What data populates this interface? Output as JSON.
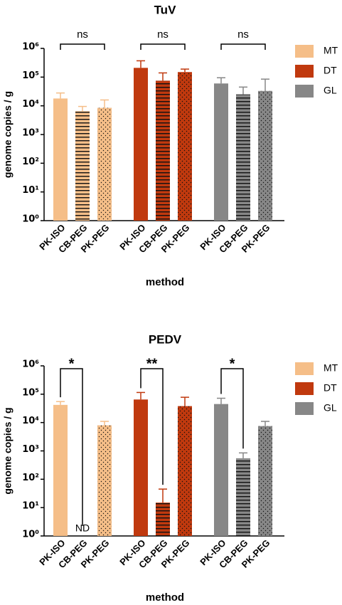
{
  "chart_data": [
    {
      "type": "bar",
      "title": "TuV",
      "xlabel": "method",
      "ylabel": "genome copies / g",
      "categories": [
        "PK-ISO",
        "CB-PEG",
        "PK-PEG"
      ],
      "series": [
        {
          "name": "MT",
          "color": "#f5be88",
          "values": [
            18000,
            6500,
            8500
          ],
          "errors": [
            10000,
            3000,
            7500
          ]
        },
        {
          "name": "DT",
          "color": "#c0390e",
          "values": [
            210000,
            75000,
            150000
          ],
          "errors": [
            160000,
            65000,
            40000
          ]
        },
        {
          "name": "GL",
          "color": "#878787",
          "values": [
            60000,
            25000,
            33000
          ],
          "errors": [
            35000,
            20000,
            52000
          ]
        }
      ],
      "patterns": [
        "solid",
        "hlines",
        "dots"
      ],
      "log_scale": true,
      "ylim": [
        1,
        1000000
      ],
      "yticks": [
        {
          "value": 1,
          "label": "10⁰"
        },
        {
          "value": 10,
          "label": "10¹"
        },
        {
          "value": 100,
          "label": "10²"
        },
        {
          "value": 1000,
          "label": "10³"
        },
        {
          "value": 10000,
          "label": "10⁴"
        },
        {
          "value": 100000,
          "label": "10⁵"
        },
        {
          "value": 1000000,
          "label": "10⁶"
        }
      ],
      "legend": "right",
      "annotations": [
        {
          "text": "ns",
          "group": 0,
          "from": 0,
          "to": 2
        },
        {
          "text": "ns",
          "group": 1,
          "from": 0,
          "to": 2
        },
        {
          "text": "ns",
          "group": 2,
          "from": 0,
          "to": 2
        }
      ]
    },
    {
      "type": "bar",
      "title": "PEDV",
      "xlabel": "method",
      "ylabel": "genome copies / g",
      "categories": [
        "PK-ISO",
        "CB-PEG",
        "PK-PEG"
      ],
      "series": [
        {
          "name": "MT",
          "color": "#f5be88",
          "values": [
            42000,
            null,
            8000
          ],
          "errors": [
            13000,
            null,
            3000
          ]
        },
        {
          "name": "DT",
          "color": "#c0390e",
          "values": [
            65000,
            15,
            38000
          ],
          "errors": [
            50000,
            30,
            40000
          ]
        },
        {
          "name": "GL",
          "color": "#878787",
          "values": [
            45000,
            550,
            7500
          ],
          "errors": [
            27000,
            300,
            3500
          ]
        }
      ],
      "patterns": [
        "solid",
        "hlines",
        "dots"
      ],
      "log_scale": true,
      "ylim": [
        1,
        1000000
      ],
      "yticks": [
        {
          "value": 1,
          "label": "10⁰"
        },
        {
          "value": 10,
          "label": "10¹"
        },
        {
          "value": 100,
          "label": "10²"
        },
        {
          "value": 1000,
          "label": "10³"
        },
        {
          "value": 10000,
          "label": "10⁴"
        },
        {
          "value": 100000,
          "label": "10⁵"
        },
        {
          "value": 1000000,
          "label": "10⁶"
        }
      ],
      "legend": "right",
      "annotations": [
        {
          "text": "*",
          "group": 0,
          "from": 0,
          "to": 1
        },
        {
          "text": "**",
          "group": 1,
          "from": 0,
          "to": 1
        },
        {
          "text": "*",
          "group": 2,
          "from": 0,
          "to": 1
        },
        {
          "text": "ND",
          "group": 0,
          "bar": 1
        }
      ]
    }
  ]
}
